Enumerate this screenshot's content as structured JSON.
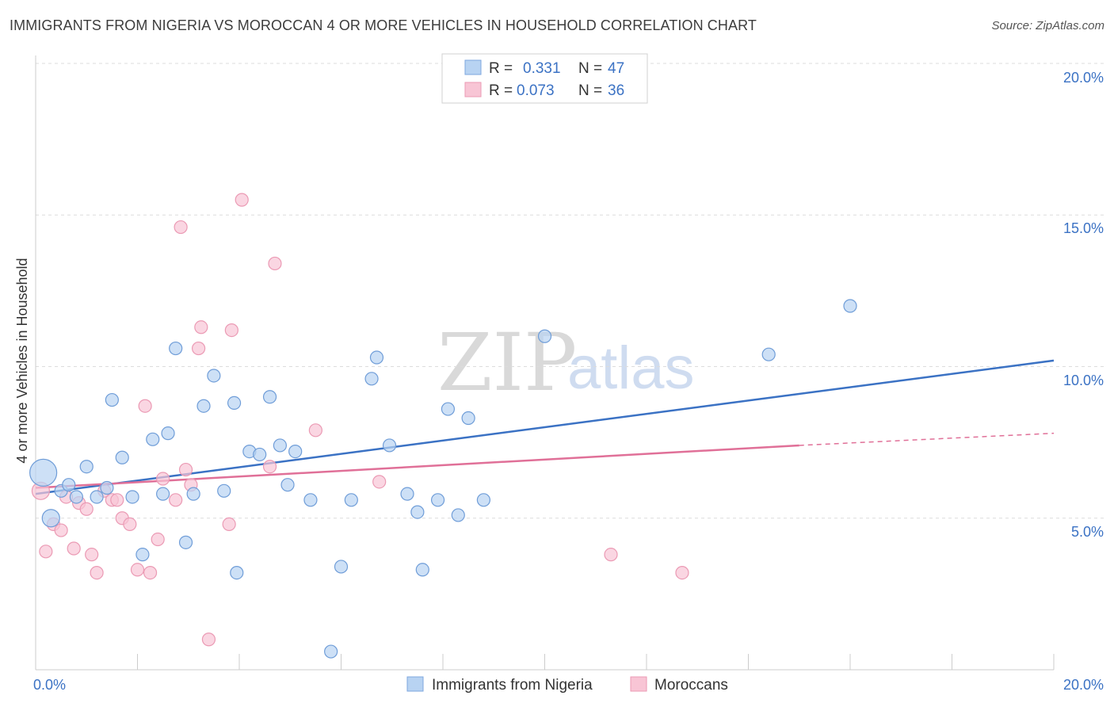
{
  "header": {
    "title": "IMMIGRANTS FROM NIGERIA VS MOROCCAN 4 OR MORE VEHICLES IN HOUSEHOLD CORRELATION CHART",
    "source": "Source: ZipAtlas.com"
  },
  "watermark": {
    "zip": "ZIP",
    "atlas": "atlas"
  },
  "legend_top": {
    "rows": [
      {
        "r_label": "R =",
        "r_value": "0.331",
        "n_label": "N =",
        "n_value": "47"
      },
      {
        "r_label": "R =",
        "r_value": "0.073",
        "n_label": "N =",
        "n_value": "36"
      }
    ]
  },
  "legend_bottom": {
    "series1": "Immigrants from Nigeria",
    "series2": "Moroccans"
  },
  "axes": {
    "ylabel": "4 or more Vehicles in Household",
    "x_min_label": "0.0%",
    "x_max_label": "20.0%",
    "y_tick_labels": [
      "5.0%",
      "10.0%",
      "15.0%",
      "20.0%"
    ]
  },
  "chart_data": {
    "type": "scatter",
    "title": "IMMIGRANTS FROM NIGERIA VS MOROCCAN 4 OR MORE VEHICLES IN HOUSEHOLD CORRELATION CHART",
    "xlabel": "",
    "ylabel": "4 or more Vehicles in Household",
    "xlim": [
      0,
      20
    ],
    "ylim": [
      0,
      20.5
    ],
    "y_ticks": [
      5,
      10,
      15,
      20
    ],
    "grid": true,
    "legend": "top-center",
    "colors": {
      "series1": "#3b72c4",
      "series1_fill": "#b8d3f2",
      "series2": "#e07098",
      "series2_fill": "#f8c5d5"
    },
    "series": [
      {
        "name": "Immigrants from Nigeria",
        "r": 0.331,
        "n": 47,
        "trend": {
          "x": [
            0,
            20
          ],
          "y": [
            5.8,
            10.2
          ]
        },
        "points": [
          [
            0.15,
            6.5,
            "xl"
          ],
          [
            0.3,
            5.0,
            "l"
          ],
          [
            0.5,
            5.9
          ],
          [
            0.65,
            6.1
          ],
          [
            0.8,
            5.7
          ],
          [
            1.0,
            6.7
          ],
          [
            1.2,
            5.7
          ],
          [
            1.4,
            6.0
          ],
          [
            1.5,
            8.9
          ],
          [
            1.7,
            7.0
          ],
          [
            1.9,
            5.7
          ],
          [
            2.1,
            3.8
          ],
          [
            2.3,
            7.6
          ],
          [
            2.5,
            5.8
          ],
          [
            2.6,
            7.8
          ],
          [
            2.75,
            10.6
          ],
          [
            2.95,
            4.2
          ],
          [
            3.1,
            5.8
          ],
          [
            3.3,
            8.7
          ],
          [
            3.5,
            9.7
          ],
          [
            3.7,
            5.9
          ],
          [
            3.9,
            8.8
          ],
          [
            3.95,
            3.2
          ],
          [
            4.2,
            7.2
          ],
          [
            4.4,
            7.1
          ],
          [
            4.6,
            9.0
          ],
          [
            4.8,
            7.4
          ],
          [
            4.95,
            6.1
          ],
          [
            5.1,
            7.2
          ],
          [
            5.4,
            5.6
          ],
          [
            5.8,
            0.6
          ],
          [
            6.0,
            3.4
          ],
          [
            6.2,
            5.6
          ],
          [
            6.6,
            9.6
          ],
          [
            6.7,
            10.3
          ],
          [
            6.95,
            7.4
          ],
          [
            7.3,
            5.8
          ],
          [
            7.5,
            5.2
          ],
          [
            7.6,
            3.3
          ],
          [
            7.9,
            5.6
          ],
          [
            8.1,
            8.6
          ],
          [
            8.3,
            5.1
          ],
          [
            8.5,
            8.3
          ],
          [
            8.8,
            5.6
          ],
          [
            10.0,
            11.0
          ],
          [
            14.4,
            10.4
          ],
          [
            16.0,
            12.0
          ]
        ]
      },
      {
        "name": "Moroccans",
        "r": 0.073,
        "n": 36,
        "trend": {
          "x": [
            0,
            15
          ],
          "y": [
            6.0,
            7.4
          ]
        },
        "trend_dashed": {
          "x": [
            15,
            20
          ],
          "y": [
            7.4,
            7.8
          ]
        },
        "points": [
          [
            0.1,
            5.9,
            "l"
          ],
          [
            0.2,
            3.9
          ],
          [
            0.35,
            4.8
          ],
          [
            0.5,
            4.6
          ],
          [
            0.6,
            5.7
          ],
          [
            0.75,
            4.0
          ],
          [
            0.85,
            5.5
          ],
          [
            1.0,
            5.3
          ],
          [
            1.1,
            3.8
          ],
          [
            1.2,
            3.2
          ],
          [
            1.35,
            5.9
          ],
          [
            1.5,
            5.6
          ],
          [
            1.6,
            5.6
          ],
          [
            1.7,
            5.0
          ],
          [
            1.85,
            4.8
          ],
          [
            2.0,
            3.3
          ],
          [
            2.15,
            8.7
          ],
          [
            2.25,
            3.2
          ],
          [
            2.4,
            4.3
          ],
          [
            2.5,
            6.3
          ],
          [
            2.75,
            5.6
          ],
          [
            2.85,
            14.6
          ],
          [
            2.95,
            6.6
          ],
          [
            3.05,
            6.1
          ],
          [
            3.2,
            10.6
          ],
          [
            3.25,
            11.3
          ],
          [
            3.4,
            1.0
          ],
          [
            3.8,
            4.8
          ],
          [
            3.85,
            11.2
          ],
          [
            4.05,
            15.5
          ],
          [
            4.6,
            6.7
          ],
          [
            4.7,
            13.4
          ],
          [
            5.5,
            7.9
          ],
          [
            6.75,
            6.2
          ],
          [
            11.3,
            3.8
          ],
          [
            12.7,
            3.2
          ]
        ]
      }
    ]
  }
}
